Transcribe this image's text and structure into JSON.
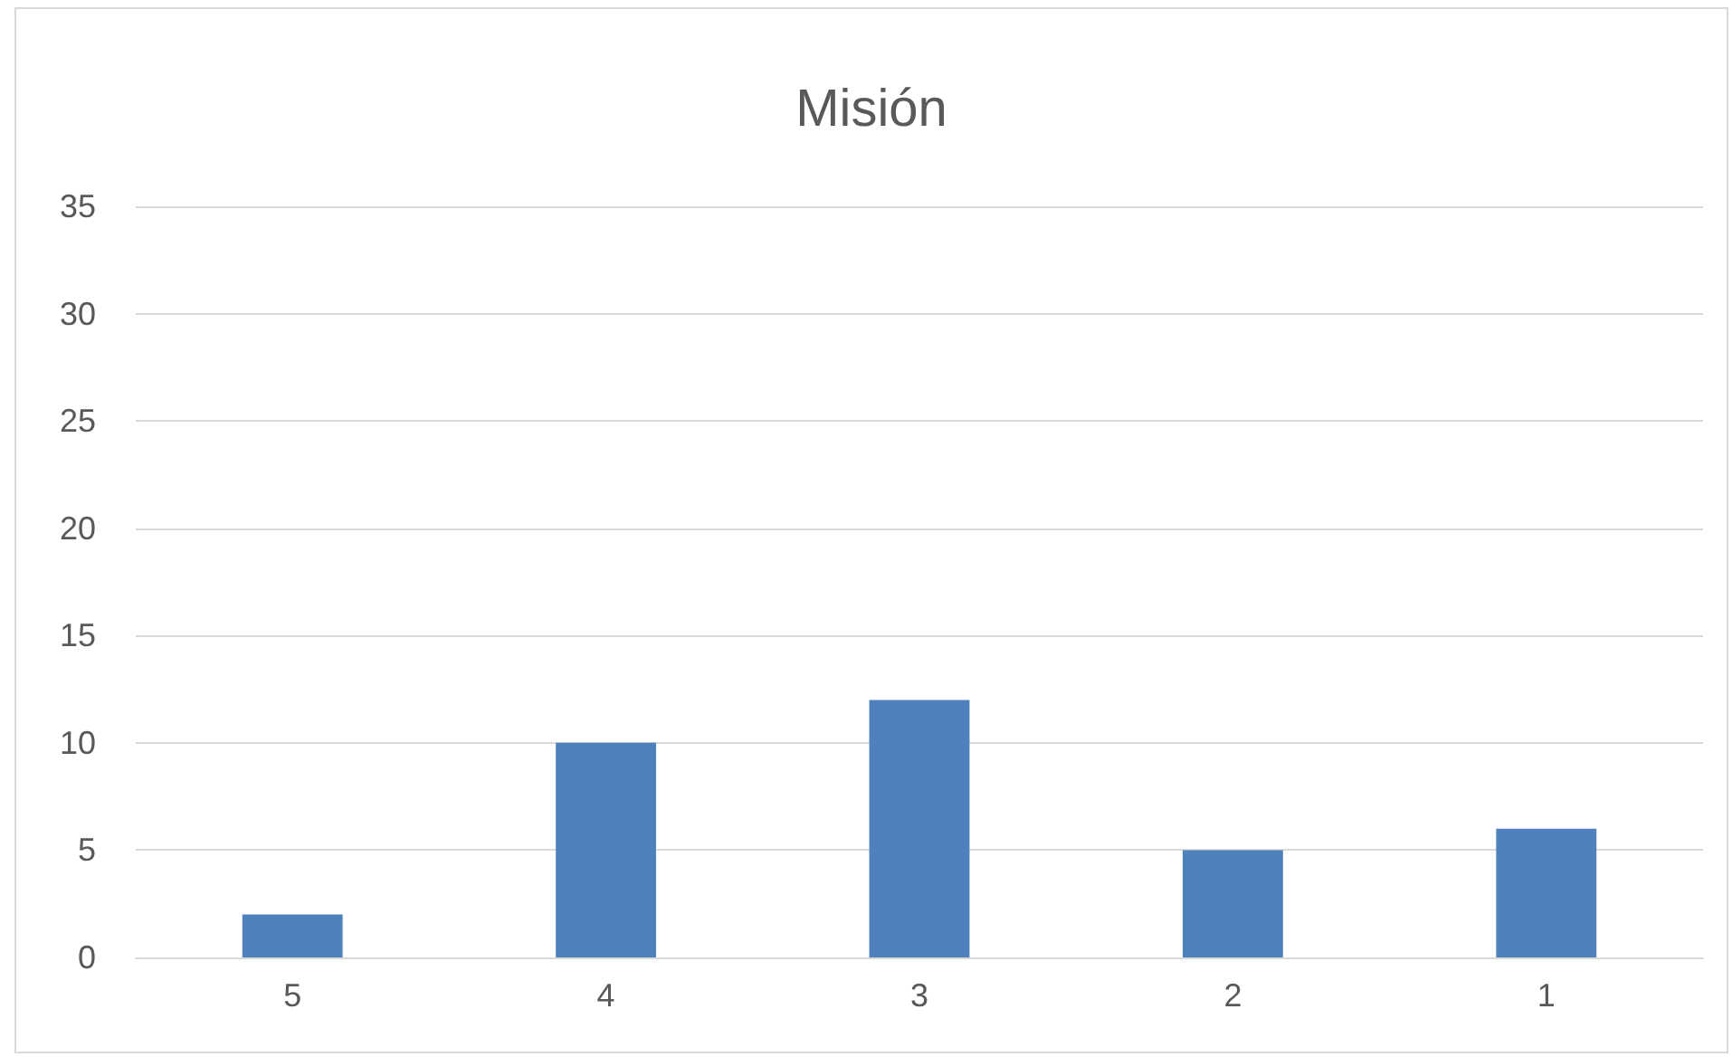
{
  "chart_data": {
    "type": "bar",
    "title": "Misión",
    "categories": [
      "5",
      "4",
      "3",
      "2",
      "1"
    ],
    "values": [
      2,
      10,
      12,
      5,
      6
    ],
    "color": "#4f81bd",
    "ylim": [
      0,
      35
    ],
    "yticks": [
      0,
      5,
      10,
      15,
      20,
      25,
      30,
      35
    ],
    "grid": "y"
  }
}
